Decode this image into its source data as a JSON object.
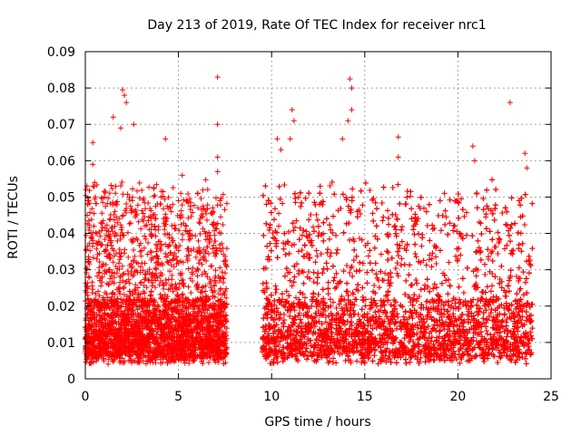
{
  "chart_data": {
    "type": "scatter",
    "title": "Day 213 of 2019, Rate Of TEC Index for receiver nrc1",
    "xlabel": "GPS time / hours",
    "ylabel": "ROTI / TECUs",
    "xlim": [
      0,
      25
    ],
    "ylim": [
      0,
      0.09
    ],
    "xticks": [
      0,
      5,
      10,
      15,
      20,
      25
    ],
    "xtick_labels": [
      "0",
      "5",
      "10",
      "15",
      "20",
      "25"
    ],
    "yticks": [
      0,
      0.01,
      0.02,
      0.03,
      0.04,
      0.05,
      0.06,
      0.07,
      0.08,
      0.09
    ],
    "ytick_labels": [
      "0",
      "0.01",
      "0.02",
      "0.03",
      "0.04",
      "0.05",
      "0.06",
      "0.07",
      "0.08",
      "0.09"
    ],
    "grid": true,
    "marker": "+",
    "series_color": "#ff0000",
    "data_segments": [
      {
        "start_hour": 0.0,
        "end_hour": 7.6
      },
      {
        "start_hour": 9.5,
        "end_hour": 24.0
      }
    ],
    "notable_points": [
      {
        "x": 0.1,
        "y": 0.045
      },
      {
        "x": 0.4,
        "y": 0.065
      },
      {
        "x": 0.4,
        "y": 0.059
      },
      {
        "x": 0.5,
        "y": 0.054
      },
      {
        "x": 1.5,
        "y": 0.072
      },
      {
        "x": 1.9,
        "y": 0.069
      },
      {
        "x": 2.0,
        "y": 0.0795
      },
      {
        "x": 2.1,
        "y": 0.078
      },
      {
        "x": 2.2,
        "y": 0.076
      },
      {
        "x": 2.6,
        "y": 0.07
      },
      {
        "x": 4.3,
        "y": 0.066
      },
      {
        "x": 5.2,
        "y": 0.056
      },
      {
        "x": 7.1,
        "y": 0.083
      },
      {
        "x": 7.1,
        "y": 0.07
      },
      {
        "x": 7.1,
        "y": 0.061
      },
      {
        "x": 7.1,
        "y": 0.057
      },
      {
        "x": 10.3,
        "y": 0.066
      },
      {
        "x": 10.5,
        "y": 0.063
      },
      {
        "x": 11.1,
        "y": 0.074
      },
      {
        "x": 11.2,
        "y": 0.071
      },
      {
        "x": 11.0,
        "y": 0.066
      },
      {
        "x": 13.8,
        "y": 0.066
      },
      {
        "x": 14.2,
        "y": 0.0825
      },
      {
        "x": 14.3,
        "y": 0.08
      },
      {
        "x": 14.3,
        "y": 0.074
      },
      {
        "x": 14.1,
        "y": 0.071
      },
      {
        "x": 16.8,
        "y": 0.0665
      },
      {
        "x": 16.8,
        "y": 0.061
      },
      {
        "x": 20.8,
        "y": 0.064
      },
      {
        "x": 20.9,
        "y": 0.06
      },
      {
        "x": 22.8,
        "y": 0.076
      },
      {
        "x": 23.6,
        "y": 0.062
      },
      {
        "x": 23.7,
        "y": 0.058
      }
    ]
  }
}
